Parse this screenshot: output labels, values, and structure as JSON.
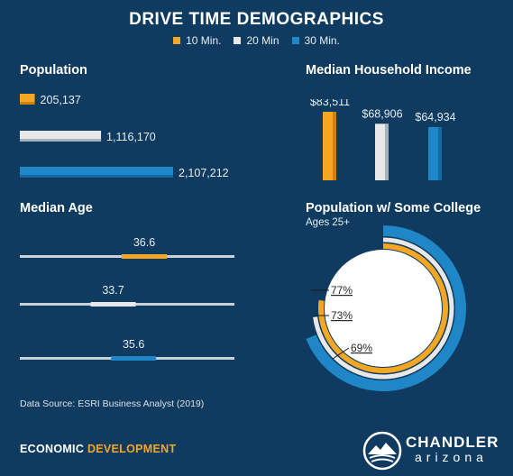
{
  "header": {
    "title": "DRIVE TIME DEMOGRAPHICS",
    "legend": [
      {
        "label": "10 Min.",
        "color": "#f5a623"
      },
      {
        "label": "20 Min",
        "color": "#e8e8e8"
      },
      {
        "label": "30 Min.",
        "color": "#1f86c8"
      }
    ]
  },
  "sections": {
    "population": "Population",
    "income": "Median Household Income",
    "age": "Median Age",
    "college": "Population w/ Some College",
    "college_sub": "Ages 25+"
  },
  "footer": {
    "source": "Data Source: ESRI Business Analyst (2019)",
    "econ_word1": "ECONOMIC",
    "econ_word2": "DEVELOPMENT",
    "brand_name": "CHANDLER",
    "brand_sub": "arizona"
  },
  "colors": {
    "bg": "#0e3b5f",
    "orange": "#f5a623",
    "white": "#e8e8e8",
    "blue": "#1f86c8",
    "accent_text": "#f5a623"
  },
  "chart_data": [
    {
      "type": "bar",
      "title": "Population",
      "orientation": "horizontal",
      "series": [
        {
          "name": "10 Min.",
          "value": 205137,
          "label": "205,137",
          "color": "#f5a623"
        },
        {
          "name": "20 Min",
          "value": 1116170,
          "label": "1,116,170",
          "color": "#e8e8e8"
        },
        {
          "name": "30 Min.",
          "value": 2107212,
          "label": "2,107,212",
          "color": "#1f86c8"
        }
      ],
      "xlim": [
        0,
        2107212
      ]
    },
    {
      "type": "bar",
      "title": "Median Household Income",
      "orientation": "vertical",
      "series": [
        {
          "name": "10 Min.",
          "value": 83511,
          "label": "$83,511",
          "color": "#f5a623"
        },
        {
          "name": "20 Min",
          "value": 68906,
          "label": "$68,906",
          "color": "#e8e8e8"
        },
        {
          "name": "30 Min.",
          "value": 64934,
          "label": "$64,934",
          "color": "#1f86c8"
        }
      ],
      "ylim": [
        0,
        83511
      ]
    },
    {
      "type": "scatter",
      "title": "Median Age",
      "series": [
        {
          "name": "10 Min.",
          "value": 36.6,
          "label": "36.6",
          "color": "#f5a623"
        },
        {
          "name": "20 Min",
          "value": 33.7,
          "label": "33.7",
          "color": "#e8e8e8"
        },
        {
          "name": "30 Min.",
          "value": 35.6,
          "label": "35.6",
          "color": "#1f86c8"
        }
      ],
      "xlim": [
        25,
        45
      ]
    },
    {
      "type": "pie",
      "title": "Population w/ Some College",
      "subtitle": "Ages 25+",
      "series": [
        {
          "name": "10 Min.",
          "value": 77,
          "label": "77%",
          "color": "#f5a623"
        },
        {
          "name": "20 Min",
          "value": 73,
          "label": "73%",
          "color": "#e8e8e8"
        },
        {
          "name": "30 Min.",
          "value": 69,
          "label": "69%",
          "color": "#1f86c8"
        }
      ]
    }
  ]
}
